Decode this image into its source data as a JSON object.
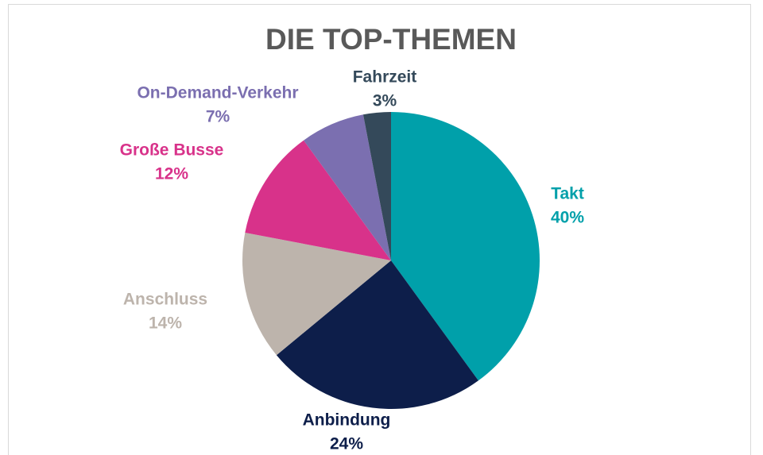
{
  "chart_data": {
    "type": "pie",
    "title": "DIE TOP-THEMEN",
    "categories": [
      "Takt",
      "Anbindung",
      "Anschluss",
      "Große Busse",
      "On-Demand-Verkehr",
      "Fahrzeit"
    ],
    "values": [
      40,
      24,
      14,
      12,
      7,
      3
    ],
    "value_labels": [
      "40%",
      "24%",
      "14%",
      "12%",
      "7%",
      "3%"
    ],
    "colors": [
      "#00a0aa",
      "#0d1e4a",
      "#bdb4ac",
      "#d8328a",
      "#7b6fb0",
      "#34495a"
    ]
  }
}
